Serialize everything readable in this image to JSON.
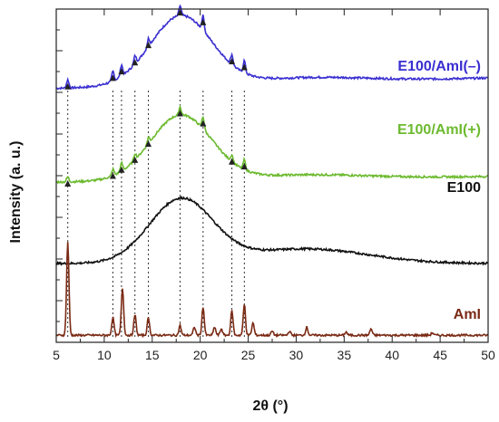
{
  "chart_data": {
    "type": "line",
    "title": "",
    "xlabel": "2θ (°)",
    "ylabel": "Intensity (a. u.)",
    "xlim": [
      5,
      50
    ],
    "x_ticks": [
      "5",
      "10",
      "15",
      "20",
      "25",
      "30",
      "35",
      "40",
      "45",
      "50"
    ],
    "y_ticks_labeled": false,
    "grid": false,
    "legend": "inline labels at right",
    "series": [
      {
        "name": "E100/AmI(–)",
        "color": "#3a2fd1",
        "offset": 3.0,
        "halo": [
          {
            "center": 18.0,
            "width": 3.2,
            "height": 0.85
          },
          {
            "center": 31.0,
            "width": 6.0,
            "height": 0.06
          }
        ],
        "base": 0.05,
        "slope": 0.0028,
        "peaks": [
          {
            "x": 6.2,
            "h": 0.1
          },
          {
            "x": 10.9,
            "h": 0.12
          },
          {
            "x": 11.8,
            "h": 0.14
          },
          {
            "x": 13.2,
            "h": 0.1
          },
          {
            "x": 14.6,
            "h": 0.1
          },
          {
            "x": 17.9,
            "h": 0.12
          },
          {
            "x": 20.3,
            "h": 0.18
          },
          {
            "x": 23.3,
            "h": 0.12
          },
          {
            "x": 24.6,
            "h": 0.15
          }
        ]
      },
      {
        "name": "E100/AmI(+)",
        "color": "#6cba2f",
        "offset": 1.85,
        "halo": [
          {
            "center": 18.0,
            "width": 3.2,
            "height": 0.8
          },
          {
            "center": 31.0,
            "width": 6.0,
            "height": 0.05
          }
        ],
        "base": 0.05,
        "slope": 0.0015,
        "peaks": [
          {
            "x": 6.2,
            "h": 0.06
          },
          {
            "x": 10.9,
            "h": 0.08
          },
          {
            "x": 11.8,
            "h": 0.1
          },
          {
            "x": 13.2,
            "h": 0.08
          },
          {
            "x": 14.6,
            "h": 0.08
          },
          {
            "x": 17.9,
            "h": 0.1
          },
          {
            "x": 20.3,
            "h": 0.15
          },
          {
            "x": 23.3,
            "h": 0.08
          },
          {
            "x": 24.6,
            "h": 0.12
          }
        ]
      },
      {
        "name": "E100",
        "color": "#111111",
        "offset": 0.9,
        "halo": [
          {
            "center": 18.0,
            "width": 3.3,
            "height": 0.78
          },
          {
            "center": 31.0,
            "width": 6.5,
            "height": 0.18
          }
        ],
        "base": 0.0,
        "slope": 0.0,
        "peaks": []
      },
      {
        "name": "AmI",
        "color": "#7a2a14",
        "offset": 0.0,
        "halo": [],
        "base": 0.02,
        "slope": 0.0,
        "peaks": [
          {
            "x": 6.2,
            "h": 1.15
          },
          {
            "x": 10.9,
            "h": 0.22
          },
          {
            "x": 11.9,
            "h": 0.58
          },
          {
            "x": 13.2,
            "h": 0.25
          },
          {
            "x": 14.6,
            "h": 0.22
          },
          {
            "x": 17.9,
            "h": 0.12
          },
          {
            "x": 19.4,
            "h": 0.1
          },
          {
            "x": 20.3,
            "h": 0.35
          },
          {
            "x": 21.5,
            "h": 0.1
          },
          {
            "x": 22.2,
            "h": 0.08
          },
          {
            "x": 23.3,
            "h": 0.3
          },
          {
            "x": 24.6,
            "h": 0.38
          },
          {
            "x": 25.5,
            "h": 0.15
          },
          {
            "x": 27.5,
            "h": 0.05
          },
          {
            "x": 29.3,
            "h": 0.05
          },
          {
            "x": 31.1,
            "h": 0.1
          },
          {
            "x": 35.2,
            "h": 0.04
          },
          {
            "x": 37.8,
            "h": 0.08
          },
          {
            "x": 44.2,
            "h": 0.03
          }
        ]
      }
    ],
    "reference_lines_2theta": [
      6.2,
      10.9,
      11.8,
      13.2,
      14.6,
      17.9,
      20.3,
      23.3,
      24.6
    ],
    "arrow_color": "#222222"
  }
}
